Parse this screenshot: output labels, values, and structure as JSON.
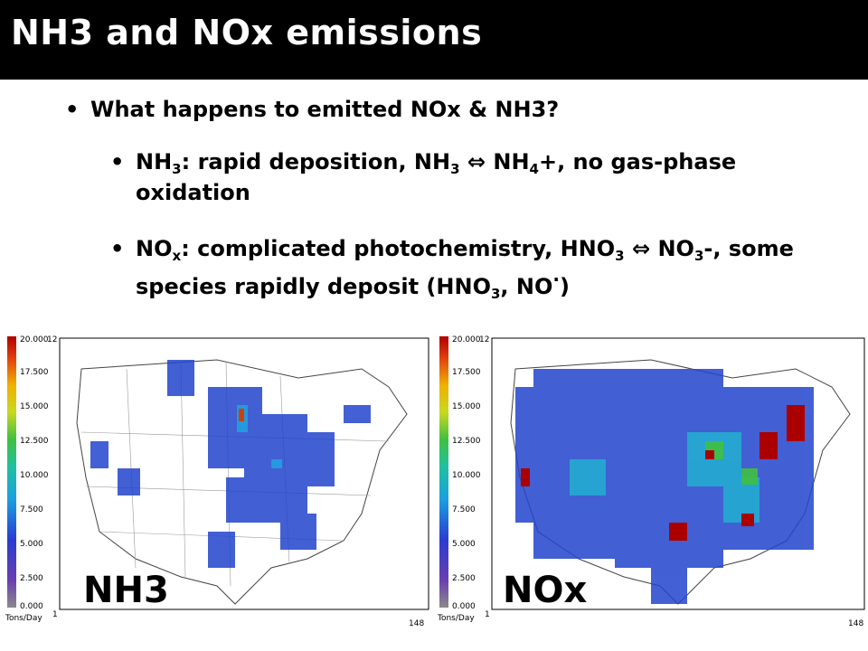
{
  "slide": {
    "title": "NH3 and NOx emissions",
    "bullets": [
      {
        "text": "What happens to emitted NOx & NH3?"
      },
      {
        "pre": "NH",
        "sub1": "3",
        "mid1": ":  rapid deposition, NH",
        "sub2": "3",
        "arrow": " ⇔ ",
        "mid2": "NH",
        "sub3": "4",
        "post": "+, no gas-phase oxidation"
      },
      {
        "pre": "NO",
        "sub1": "x",
        "mid1": ":  complicated photochemistry, HNO",
        "sub2": "3",
        "arrow": " ⇔ ",
        "mid2": "NO",
        "sub3": "3",
        "mid3": "-, some species rapidly deposit (HNO",
        "sub4": "3",
        "post": ", NO",
        "sup": "·",
        "end": ")"
      }
    ]
  },
  "maps": [
    {
      "label": "NH3",
      "colorbar": {
        "ticks": [
          "20.000",
          "17.500",
          "15.000",
          "12.500",
          "10.000",
          "7.500",
          "5.000",
          "2.500",
          "0.000"
        ],
        "unit": "Tons/Day",
        "top_right": "12",
        "bottom": "1"
      },
      "axis": {
        "x_start": "1",
        "x_end": "148"
      }
    },
    {
      "label": "NOx",
      "colorbar": {
        "ticks": [
          "20.000",
          "17.500",
          "15.000",
          "12.500",
          "10.000",
          "7.500",
          "5.000",
          "2.500",
          "0.000"
        ],
        "unit": "Tons/Day",
        "top_right": "12",
        "bottom": "1"
      },
      "axis": {
        "x_start": "1",
        "x_end": "148"
      }
    }
  ],
  "colors": {
    "title_bg": "#000000",
    "title_fg": "#ffffff",
    "map_low": "#2233cc",
    "map_high": "#aa0000"
  }
}
